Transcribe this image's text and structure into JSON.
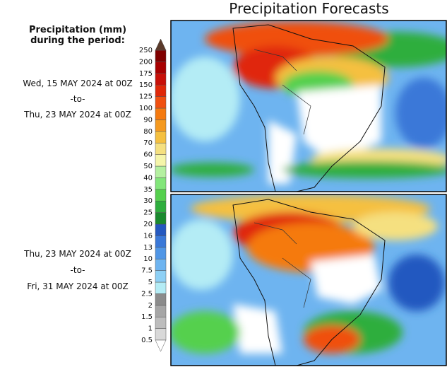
{
  "header": {
    "title": "Precipitation Forecasts"
  },
  "legend": {
    "title_line1": "Precipitation (mm)",
    "title_line2": "during the period:",
    "levels": [
      0.5,
      1,
      1.5,
      2,
      2.5,
      5,
      7.5,
      10,
      13,
      16,
      20,
      25,
      30,
      35,
      40,
      50,
      60,
      70,
      80,
      90,
      100,
      125,
      150,
      175,
      200,
      250
    ],
    "colors": [
      "#d9d9d9",
      "#bdbdbd",
      "#a6a6a6",
      "#8c8c8c",
      "#b4ecf5",
      "#8ed0f5",
      "#6eb4f0",
      "#5096e6",
      "#3a78d8",
      "#2458c0",
      "#1a8a2e",
      "#2eae3e",
      "#55d04e",
      "#82e67a",
      "#b4f0a0",
      "#f5f5aa",
      "#f5e080",
      "#f5c040",
      "#f59a20",
      "#f57a10",
      "#f05010",
      "#e02808",
      "#c81008",
      "#a80000",
      "#800000"
    ],
    "over_color": "#5a3a2a",
    "under_color": "#ffffff"
  },
  "periods": [
    {
      "start": "Wed, 15 MAY 2024 at 00Z",
      "sep": "-to-",
      "end": "Thu, 23 MAY 2024 at 00Z"
    },
    {
      "start": "Thu, 23 MAY 2024 at 00Z",
      "sep": "-to-",
      "end": "Fri, 31 MAY 2024 at 00Z"
    }
  ]
}
